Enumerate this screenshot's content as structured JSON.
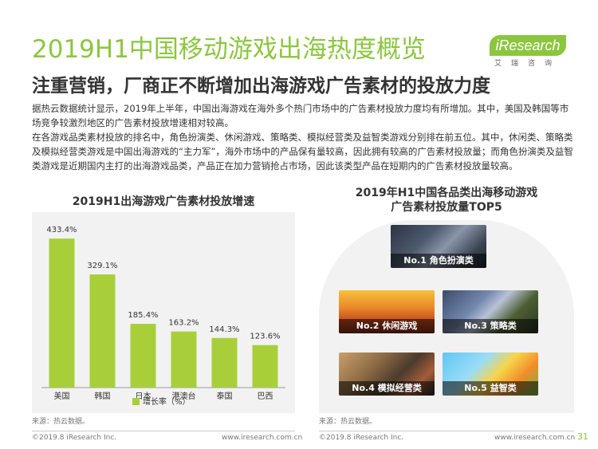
{
  "header": {
    "title": "2019H1中国移动游戏出海热度概览",
    "subtitle": "注重营销，厂商正不断增加出海游戏广告素材的投放力度"
  },
  "logo": {
    "main": "iResearch",
    "sub": "艾瑞咨询"
  },
  "body": {
    "p1": "据热云数据统计显示，2019年上半年，中国出海游戏在海外多个热门市场中的广告素材投放力度均有所增加。其中，美国及韩国等市场竞争较激烈地区的广告素材投放增速相对较高。",
    "p2": "在各游戏品类素材投放的排名中，角色扮演类、休闲游戏、策略类、模拟经营类及益智类游戏分别排在前五位。其中，休闲类、策略类及模拟经营类游戏是中国出海游戏的“主力军”，海外市场中的产品保有量较高，因此拥有较高的广告素材投放量；而角色扮演类及益智类游戏是近期国内主打的出海游戏品类，产品正在加力营销抢占市场，因此该类型产品在短期内的广告素材投放量较高。"
  },
  "chart_data": {
    "type": "bar",
    "title": "2019H1出海游戏广告素材投放增速",
    "categories": [
      "美国",
      "韩国",
      "日本",
      "港澳台",
      "泰国",
      "巴西"
    ],
    "series": [
      {
        "name": "增长率（%）",
        "values": [
          433.4,
          329.1,
          185.4,
          163.2,
          144.3,
          123.6
        ]
      }
    ],
    "data_labels": [
      "433.4%",
      "329.1%",
      "185.4%",
      "163.2%",
      "144.3%",
      "123.6%"
    ],
    "ylim": [
      0,
      450
    ],
    "grid": false,
    "legend_position": "bottom",
    "bar_color": "#a8cf3a"
  },
  "right": {
    "title_line1": "2019年H1中国各品类出海移动游戏",
    "title_line2": "广告素材投放量TOP5",
    "items": [
      {
        "label": "No.1 角色扮演类"
      },
      {
        "label": "No.2 休闲游戏"
      },
      {
        "label": "No.3 策略类"
      },
      {
        "label": "No.4 模拟经营类"
      },
      {
        "label": "No.5 益智类"
      }
    ]
  },
  "sources": {
    "left": "来源：热云数据。",
    "right": "来源：热云数据。"
  },
  "footer": {
    "copyright_left": "©2019.8 iResearch Inc.",
    "url_left": "www.iresearch.com.cn",
    "copyright_right": "©2019.8 iResearch Inc.",
    "url_right": "www.iresearch.com.cn",
    "page": "31"
  }
}
